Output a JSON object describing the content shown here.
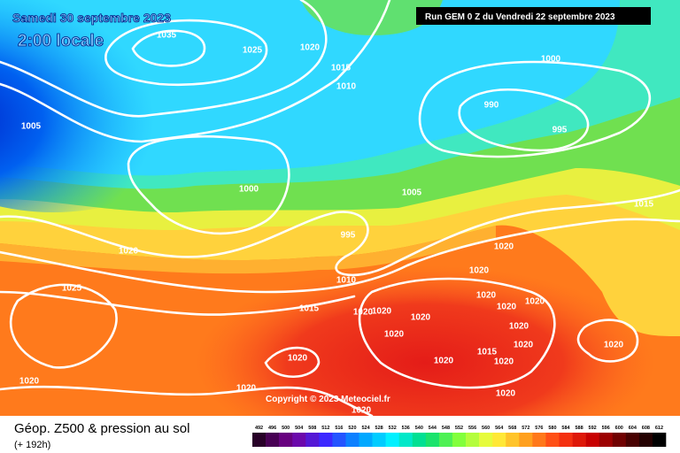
{
  "header": {
    "date": "Samedi 30 septembre 2023",
    "time": "2:00 locale",
    "run": "Run GEM 0 Z du Vendredi 22 septembre 2023"
  },
  "copyright": "Copyright © 2023 Meteociel.fr",
  "footer": {
    "title": "Géop. Z500 & pression au sol",
    "lead": "(+ 192h)"
  },
  "isobar_labels": [
    "1035",
    "1025",
    "1020",
    "1015",
    "1010",
    "1000",
    "1005",
    "990",
    "995",
    "1000",
    "1005",
    "1015",
    "995",
    "1020",
    "1020",
    "1020",
    "1025",
    "1010",
    "1020",
    "1015",
    "1020",
    "1020",
    "1020",
    "1020",
    "1020",
    "1020",
    "1020",
    "1020",
    "1015",
    "1020",
    "1020",
    "1020",
    "1020",
    "1020",
    "1020",
    "1020",
    "1020"
  ],
  "legend": {
    "ticks": [
      492,
      496,
      500,
      504,
      508,
      512,
      516,
      520,
      524,
      528,
      532,
      536,
      540,
      544,
      548,
      552,
      556,
      560,
      564,
      568,
      572,
      576,
      580,
      584,
      588,
      592,
      596,
      600,
      604,
      608,
      612
    ]
  }
}
